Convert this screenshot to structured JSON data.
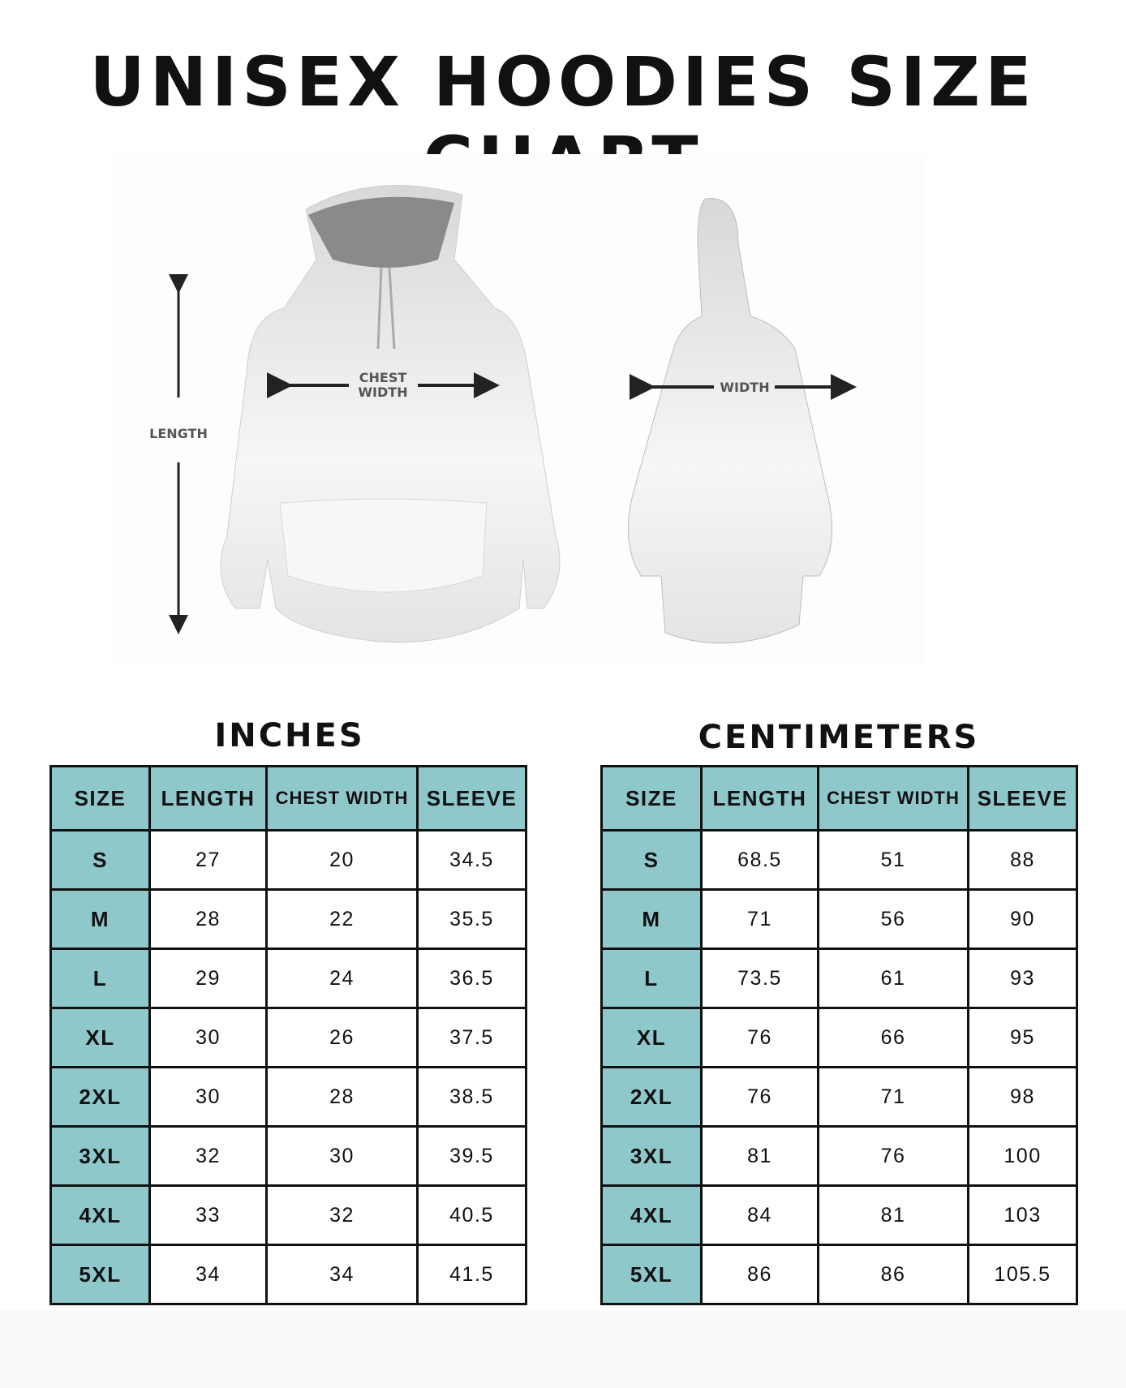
{
  "title": "UNISEX HOODIES SIZE CHART",
  "diagram": {
    "length_label": "LENGTH",
    "chest_label_1": "CHEST",
    "chest_label_2": "WIDTH",
    "back_width_label": "WIDTH"
  },
  "colors": {
    "header_bg": "#8fc8cb",
    "border": "#111111"
  },
  "inches": {
    "title": "INCHES",
    "headers": [
      "SIZE",
      "LENGTH",
      "CHEST WIDTH",
      "SLEEVE"
    ],
    "rows": [
      [
        "S",
        "27",
        "20",
        "34.5"
      ],
      [
        "M",
        "28",
        "22",
        "35.5"
      ],
      [
        "L",
        "29",
        "24",
        "36.5"
      ],
      [
        "XL",
        "30",
        "26",
        "37.5"
      ],
      [
        "2XL",
        "30",
        "28",
        "38.5"
      ],
      [
        "3XL",
        "32",
        "30",
        "39.5"
      ],
      [
        "4XL",
        "33",
        "32",
        "40.5"
      ],
      [
        "5XL",
        "34",
        "34",
        "41.5"
      ]
    ]
  },
  "centimeters": {
    "title": "CENTIMETERS",
    "headers": [
      "SIZE",
      "LENGTH",
      "CHEST WIDTH",
      "SLEEVE"
    ],
    "rows": [
      [
        "S",
        "68.5",
        "51",
        "88"
      ],
      [
        "M",
        "71",
        "56",
        "90"
      ],
      [
        "L",
        "73.5",
        "61",
        "93"
      ],
      [
        "XL",
        "76",
        "66",
        "95"
      ],
      [
        "2XL",
        "76",
        "71",
        "98"
      ],
      [
        "3XL",
        "81",
        "76",
        "100"
      ],
      [
        "4XL",
        "84",
        "81",
        "103"
      ],
      [
        "5XL",
        "86",
        "86",
        "105.5"
      ]
    ]
  }
}
